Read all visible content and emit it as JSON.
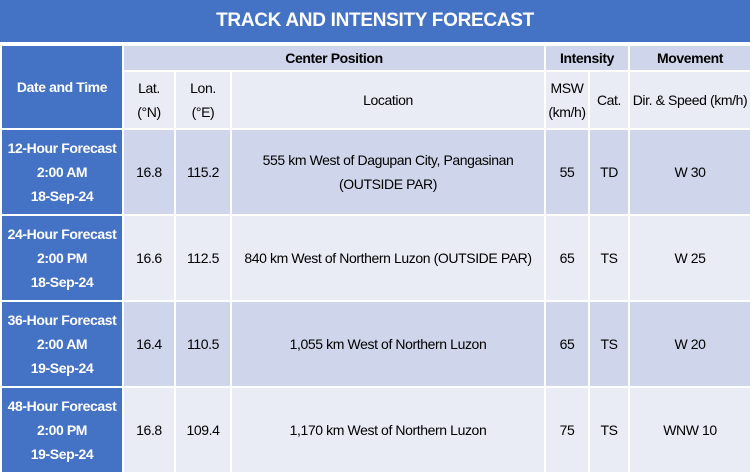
{
  "title": "TRACK AND INTENSITY FORECAST",
  "headers": {
    "date_time": "Date and Time",
    "center_position": "Center Position",
    "intensity": "Intensity",
    "movement": "Movement",
    "lat_line1": "Lat.",
    "lat_line2": "(°N)",
    "lon_line1": "Lon.",
    "lon_line2": "(°E)",
    "location": "Location",
    "msw_line1": "MSW",
    "msw_line2": "(km/h)",
    "cat": "Cat.",
    "dir_speed": "Dir. & Speed (km/h)"
  },
  "rows": [
    {
      "forecast": "12-Hour Forecast",
      "time": "2:00 AM",
      "date": "18-Sep-24",
      "lat": "16.8",
      "lon": "115.2",
      "location": "555 km West of Dagupan City, Pangasinan (OUTSIDE PAR)",
      "msw": "55",
      "cat": "TD",
      "movement": "W 30"
    },
    {
      "forecast": "24-Hour Forecast",
      "time": "2:00 PM",
      "date": "18-Sep-24",
      "lat": "16.6",
      "lon": "112.5",
      "location": "840 km West of Northern Luzon (OUTSIDE PAR)",
      "msw": "65",
      "cat": "TS",
      "movement": "W 25"
    },
    {
      "forecast": "36-Hour Forecast",
      "time": "2:00 AM",
      "date": "19-Sep-24",
      "lat": "16.4",
      "lon": "110.5",
      "location": "1,055 km West of Northern Luzon",
      "msw": "65",
      "cat": "TS",
      "movement": "W 20"
    },
    {
      "forecast": "48-Hour Forecast",
      "time": "2:00 PM",
      "date": "19-Sep-24",
      "lat": "16.8",
      "lon": "109.4",
      "location": "1,170 km West of Northern Luzon",
      "msw": "75",
      "cat": "TS",
      "movement": "WNW 10"
    }
  ]
}
